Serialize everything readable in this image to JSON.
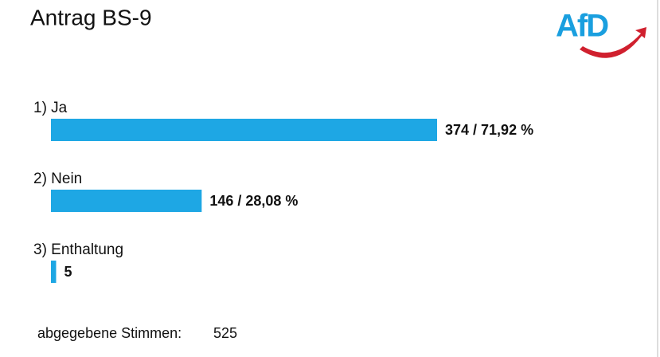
{
  "chart_data": {
    "type": "bar",
    "orientation": "horizontal",
    "title": "Antrag BS-9",
    "logo": "AfD",
    "categories": [
      "1) Ja",
      "2) Nein",
      "3) Enthaltung"
    ],
    "values": [
      374,
      146,
      5
    ],
    "value_labels": [
      "374 / 71,92 %",
      "146 / 28,08 %",
      "5"
    ],
    "color": "#1ea7e4",
    "total_label": "abgegebene Stimmen:",
    "total": 525
  }
}
